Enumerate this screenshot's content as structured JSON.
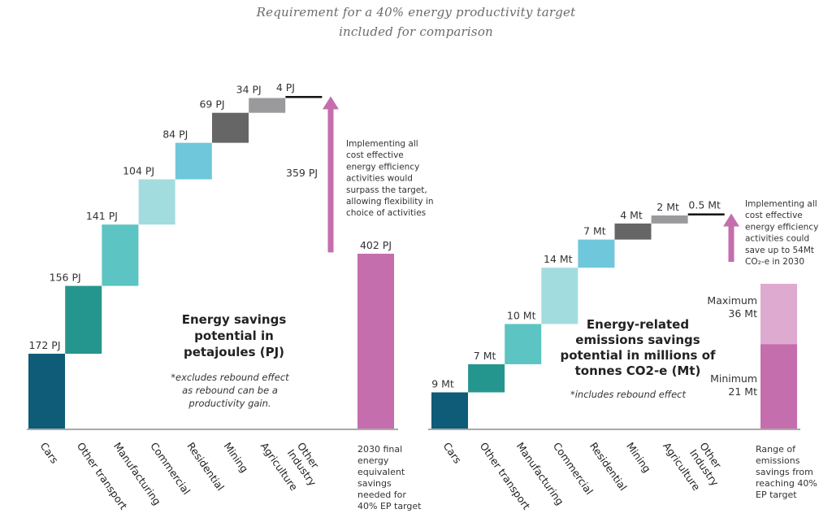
{
  "header": {
    "line1": "Requirement for a 40% energy productivity target",
    "line2": "included for comparison"
  },
  "colors": {
    "cars": "#0e5c78",
    "other_transport": "#25968e",
    "manufacturing": "#5cc4c2",
    "commercial": "#a3dcdf",
    "residential": "#6fc7dc",
    "mining": "#666667",
    "agriculture": "#9a9a9c",
    "other_industry": "#111111",
    "target": "#c56ead",
    "target_light": "#dfaad0"
  },
  "chart_data": [
    {
      "type": "bar",
      "subtype": "waterfall",
      "title": "Energy savings potential in petajoules (PJ)",
      "title_lines": [
        "Energy savings",
        "potential in",
        "petajoules (PJ)"
      ],
      "note": "*excludes rebound effect as rebound can be a productivity gain.",
      "note_lines": [
        "*excludes rebound effect",
        "as rebound can be a",
        "productivity gain."
      ],
      "units": "PJ",
      "categories": [
        "Cars",
        "Other transport",
        "Manufacturing",
        "Commercial",
        "Residential",
        "Mining",
        "Agriculture",
        "Other Industry"
      ],
      "category_lines": [
        [
          "Cars"
        ],
        [
          "Other transport"
        ],
        [
          "Manufacturing"
        ],
        [
          "Commercial"
        ],
        [
          "Residential"
        ],
        [
          "Mining"
        ],
        [
          "Agriculture"
        ],
        [
          "Other",
          "Industry"
        ]
      ],
      "values": [
        172,
        156,
        141,
        104,
        84,
        69,
        34,
        4
      ],
      "value_labels": [
        "172 PJ",
        "156 PJ",
        "141 PJ",
        "104 PJ",
        "84 PJ",
        "69 PJ",
        "34 PJ",
        "4 PJ"
      ],
      "target": {
        "category_lines": [
          "2030 final",
          "energy",
          "equivalent",
          "savings",
          "needed for",
          "40% EP target"
        ],
        "value": 402,
        "label": "402 PJ"
      },
      "surplus": {
        "value": 359,
        "label": "359 PJ",
        "note_lines": [
          "Implementing all",
          "cost effective",
          "energy efficiency",
          "activities would",
          "surpass the target,",
          "allowing flexibility in",
          "choice of activities"
        ]
      }
    },
    {
      "type": "bar",
      "subtype": "waterfall",
      "title": "Energy-related emissions savings potential in millions of tonnes CO2-e (Mt)",
      "title_lines": [
        "Energy-related",
        "emissions savings",
        "potential in millions of",
        "tonnes CO2-e (Mt)"
      ],
      "note": "*includes rebound effect",
      "units": "Mt",
      "categories": [
        "Cars",
        "Other transport",
        "Manufacturing",
        "Commercial",
        "Residential",
        "Mining",
        "Agriculture",
        "Other Industry"
      ],
      "category_lines": [
        [
          "Cars"
        ],
        [
          "Other transport"
        ],
        [
          "Manufacturing"
        ],
        [
          "Commercial"
        ],
        [
          "Residential"
        ],
        [
          "Mining"
        ],
        [
          "Agriculture"
        ],
        [
          "Other",
          "Industry"
        ]
      ],
      "values": [
        9,
        7,
        10,
        14,
        7,
        4,
        2,
        0.5
      ],
      "value_labels": [
        "9 Mt",
        "7 Mt",
        "10 Mt",
        "14 Mt",
        "7 Mt",
        "4 Mt",
        "2 Mt",
        "0.5 Mt"
      ],
      "target": {
        "category_lines": [
          "Range of",
          "emissions",
          "savings from",
          "reaching 40%",
          "EP target"
        ],
        "minimum": 21,
        "maximum": 36,
        "minimum_label_lines": [
          "Minimum",
          "21 Mt"
        ],
        "maximum_label_lines": [
          "Maximum",
          "36 Mt"
        ]
      },
      "surplus": {
        "note_lines": [
          "Implementing all",
          "cost effective",
          "energy efficiency",
          "activities could",
          "save up to 54Mt",
          "CO₂-e in 2030"
        ]
      }
    }
  ]
}
